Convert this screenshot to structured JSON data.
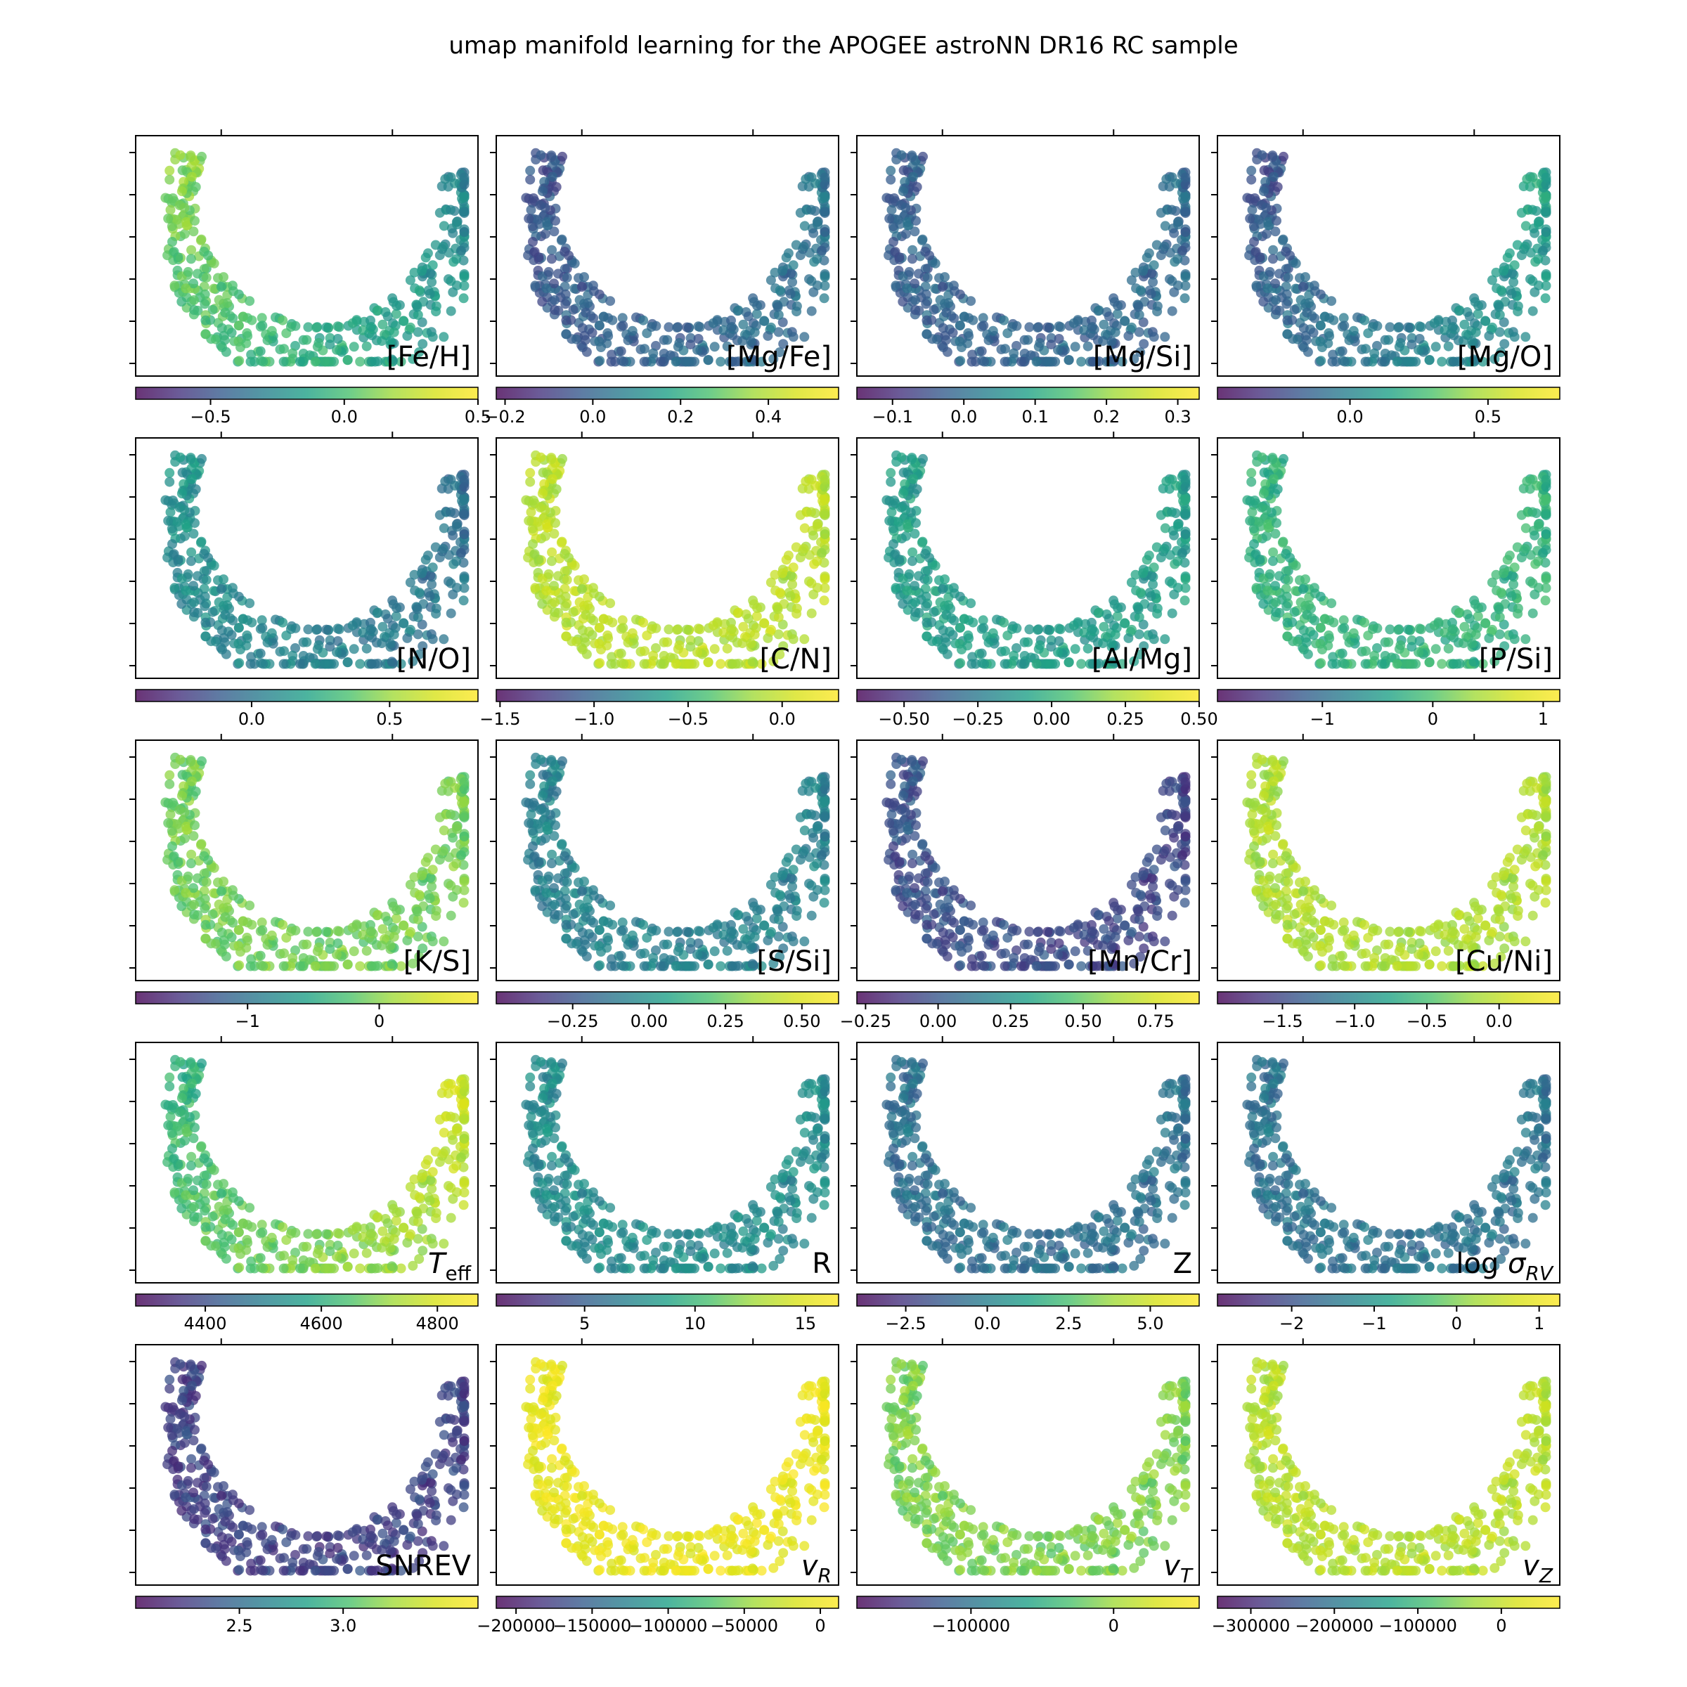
{
  "chart_data": {
    "type": "scatter",
    "title": "umap manifold learning for the APOGEE astroNN DR16 RC sample",
    "colormap": "viridis",
    "panels": [
      {
        "label": "[Fe/H]",
        "base": 0.55,
        "gradient": 0.35,
        "range": [
          -0.78,
          0.5
        ],
        "ticks": [
          {
            "v": -0.5,
            "t": "−0.5"
          },
          {
            "v": 0.0,
            "t": "0.0"
          },
          {
            "v": 0.5,
            "t": "0.5"
          }
        ]
      },
      {
        "label": "[Mg/Fe]",
        "base": 0.28,
        "gradient": -0.12,
        "range": [
          -0.22,
          0.56
        ],
        "ticks": [
          {
            "v": -0.2,
            "t": "−0.2"
          },
          {
            "v": 0.0,
            "t": "0.0"
          },
          {
            "v": 0.2,
            "t": "0.2"
          },
          {
            "v": 0.4,
            "t": "0.4"
          }
        ]
      },
      {
        "label": "[Mg/Si]",
        "base": 0.28,
        "gradient": -0.04,
        "range": [
          -0.15,
          0.33
        ],
        "ticks": [
          {
            "v": -0.1,
            "t": "−0.1"
          },
          {
            "v": 0.0,
            "t": "0.0"
          },
          {
            "v": 0.1,
            "t": "0.1"
          },
          {
            "v": 0.2,
            "t": "0.2"
          },
          {
            "v": 0.3,
            "t": "0.3"
          }
        ]
      },
      {
        "label": "[Mg/O]",
        "base": 0.36,
        "gradient": -0.3,
        "range": [
          -0.48,
          0.76
        ],
        "ticks": [
          {
            "v": 0.0,
            "t": "0.0"
          },
          {
            "v": 0.5,
            "t": "0.5"
          }
        ]
      },
      {
        "label": "[N/O]",
        "base": 0.38,
        "gradient": 0.15,
        "range": [
          -0.42,
          0.82
        ],
        "ticks": [
          {
            "v": 0.0,
            "t": "0.0"
          },
          {
            "v": 0.5,
            "t": "0.5"
          }
        ]
      },
      {
        "label": "[C/N]",
        "base": 0.8,
        "gradient": 0.0,
        "range": [
          -1.52,
          0.3
        ],
        "ticks": [
          {
            "v": -1.5,
            "t": "−1.5"
          },
          {
            "v": -1.0,
            "t": "−1.0"
          },
          {
            "v": -0.5,
            "t": "−0.5"
          },
          {
            "v": 0.0,
            "t": "0.0"
          }
        ]
      },
      {
        "label": "[Al/Mg]",
        "base": 0.48,
        "gradient": 0.0,
        "range": [
          -0.66,
          0.5
        ],
        "ticks": [
          {
            "v": -0.5,
            "t": "−0.50"
          },
          {
            "v": -0.25,
            "t": "−0.25"
          },
          {
            "v": 0.0,
            "t": "0.00"
          },
          {
            "v": 0.25,
            "t": "0.25"
          },
          {
            "v": 0.5,
            "t": "0.50"
          }
        ]
      },
      {
        "label": "[P/Si]",
        "base": 0.56,
        "gradient": 0.0,
        "range": [
          -1.95,
          1.15
        ],
        "ticks": [
          {
            "v": -1,
            "t": "−1"
          },
          {
            "v": 0,
            "t": "0"
          },
          {
            "v": 1,
            "t": "1"
          }
        ]
      },
      {
        "label": "[K/S]",
        "base": 0.68,
        "gradient": 0.0,
        "range": [
          -1.85,
          0.75
        ],
        "ticks": [
          {
            "v": -1,
            "t": "−1"
          },
          {
            "v": 0,
            "t": "0"
          }
        ]
      },
      {
        "label": "[S/Si]",
        "base": 0.38,
        "gradient": 0.0,
        "range": [
          -0.5,
          0.62
        ],
        "ticks": [
          {
            "v": -0.25,
            "t": "−0.25"
          },
          {
            "v": 0.0,
            "t": "0.00"
          },
          {
            "v": 0.25,
            "t": "0.25"
          },
          {
            "v": 0.5,
            "t": "0.50"
          }
        ]
      },
      {
        "label": "[Mn/Cr]",
        "base": 0.2,
        "gradient": 0.06,
        "range": [
          -0.28,
          0.9
        ],
        "ticks": [
          {
            "v": -0.25,
            "t": "−0.25"
          },
          {
            "v": 0.0,
            "t": "0.00"
          },
          {
            "v": 0.25,
            "t": "0.25"
          },
          {
            "v": 0.5,
            "t": "0.50"
          },
          {
            "v": 0.75,
            "t": "0.75"
          }
        ]
      },
      {
        "label": "[Cu/Ni]",
        "base": 0.78,
        "gradient": 0.0,
        "range": [
          -1.95,
          0.42
        ],
        "ticks": [
          {
            "v": -1.5,
            "t": "−1.5"
          },
          {
            "v": -1.0,
            "t": "−1.0"
          },
          {
            "v": -0.5,
            "t": "−0.5"
          },
          {
            "v": 0.0,
            "t": "0.0"
          }
        ]
      },
      {
        "label": "T_eff",
        "base": 0.7,
        "gradient": -0.3,
        "range": [
          4280,
          4870
        ],
        "ticks": [
          {
            "v": 4400,
            "t": "4400"
          },
          {
            "v": 4600,
            "t": "4600"
          },
          {
            "v": 4800,
            "t": "4800"
          }
        ]
      },
      {
        "label": "R",
        "base": 0.42,
        "gradient": 0.0,
        "range": [
          1,
          16.5
        ],
        "ticks": [
          {
            "v": 5,
            "t": "5"
          },
          {
            "v": 10,
            "t": "10"
          },
          {
            "v": 15,
            "t": "15"
          }
        ]
      },
      {
        "label": "Z",
        "base": 0.32,
        "gradient": 0.0,
        "range": [
          -4.0,
          6.5
        ],
        "ticks": [
          {
            "v": -2.5,
            "t": "−2.5"
          },
          {
            "v": 0.0,
            "t": "0.0"
          },
          {
            "v": 2.5,
            "t": "2.5"
          },
          {
            "v": 5.0,
            "t": "5.0"
          }
        ]
      },
      {
        "label": "log σ_RV",
        "base": 0.33,
        "gradient": 0.0,
        "range": [
          -2.9,
          1.25
        ],
        "ticks": [
          {
            "v": -2,
            "t": "−2"
          },
          {
            "v": -1,
            "t": "−1"
          },
          {
            "v": 0,
            "t": "0"
          },
          {
            "v": 1,
            "t": "1"
          }
        ]
      },
      {
        "label": "SNREV",
        "base": 0.17,
        "gradient": 0.0,
        "range": [
          2.0,
          3.65
        ],
        "ticks": [
          {
            "v": 2.5,
            "t": "2.5"
          },
          {
            "v": 3.0,
            "t": "3.0"
          }
        ]
      },
      {
        "label": "v_R",
        "base": 0.93,
        "gradient": 0.0,
        "range": [
          -213000,
          12000
        ],
        "ticks": [
          {
            "v": -200000,
            "t": "−200000"
          },
          {
            "v": -150000,
            "t": "−150000"
          },
          {
            "v": -100000,
            "t": "−100000"
          },
          {
            "v": -50000,
            "t": "−50000"
          },
          {
            "v": 0,
            "t": "0"
          }
        ]
      },
      {
        "label": "v_T",
        "base": 0.7,
        "gradient": 0.0,
        "range": [
          -180000,
          60000
        ],
        "ticks": [
          {
            "v": -100000,
            "t": "−100000"
          },
          {
            "v": 0,
            "t": "0"
          }
        ]
      },
      {
        "label": "v_Z",
        "base": 0.8,
        "gradient": 0.0,
        "range": [
          -340000,
          70000
        ],
        "ticks": [
          {
            "v": -300000,
            "t": "−300000"
          },
          {
            "v": -200000,
            "t": "−200000"
          },
          {
            "v": -100000,
            "t": "−100000"
          },
          {
            "v": 0,
            "t": "0"
          }
        ]
      }
    ]
  }
}
